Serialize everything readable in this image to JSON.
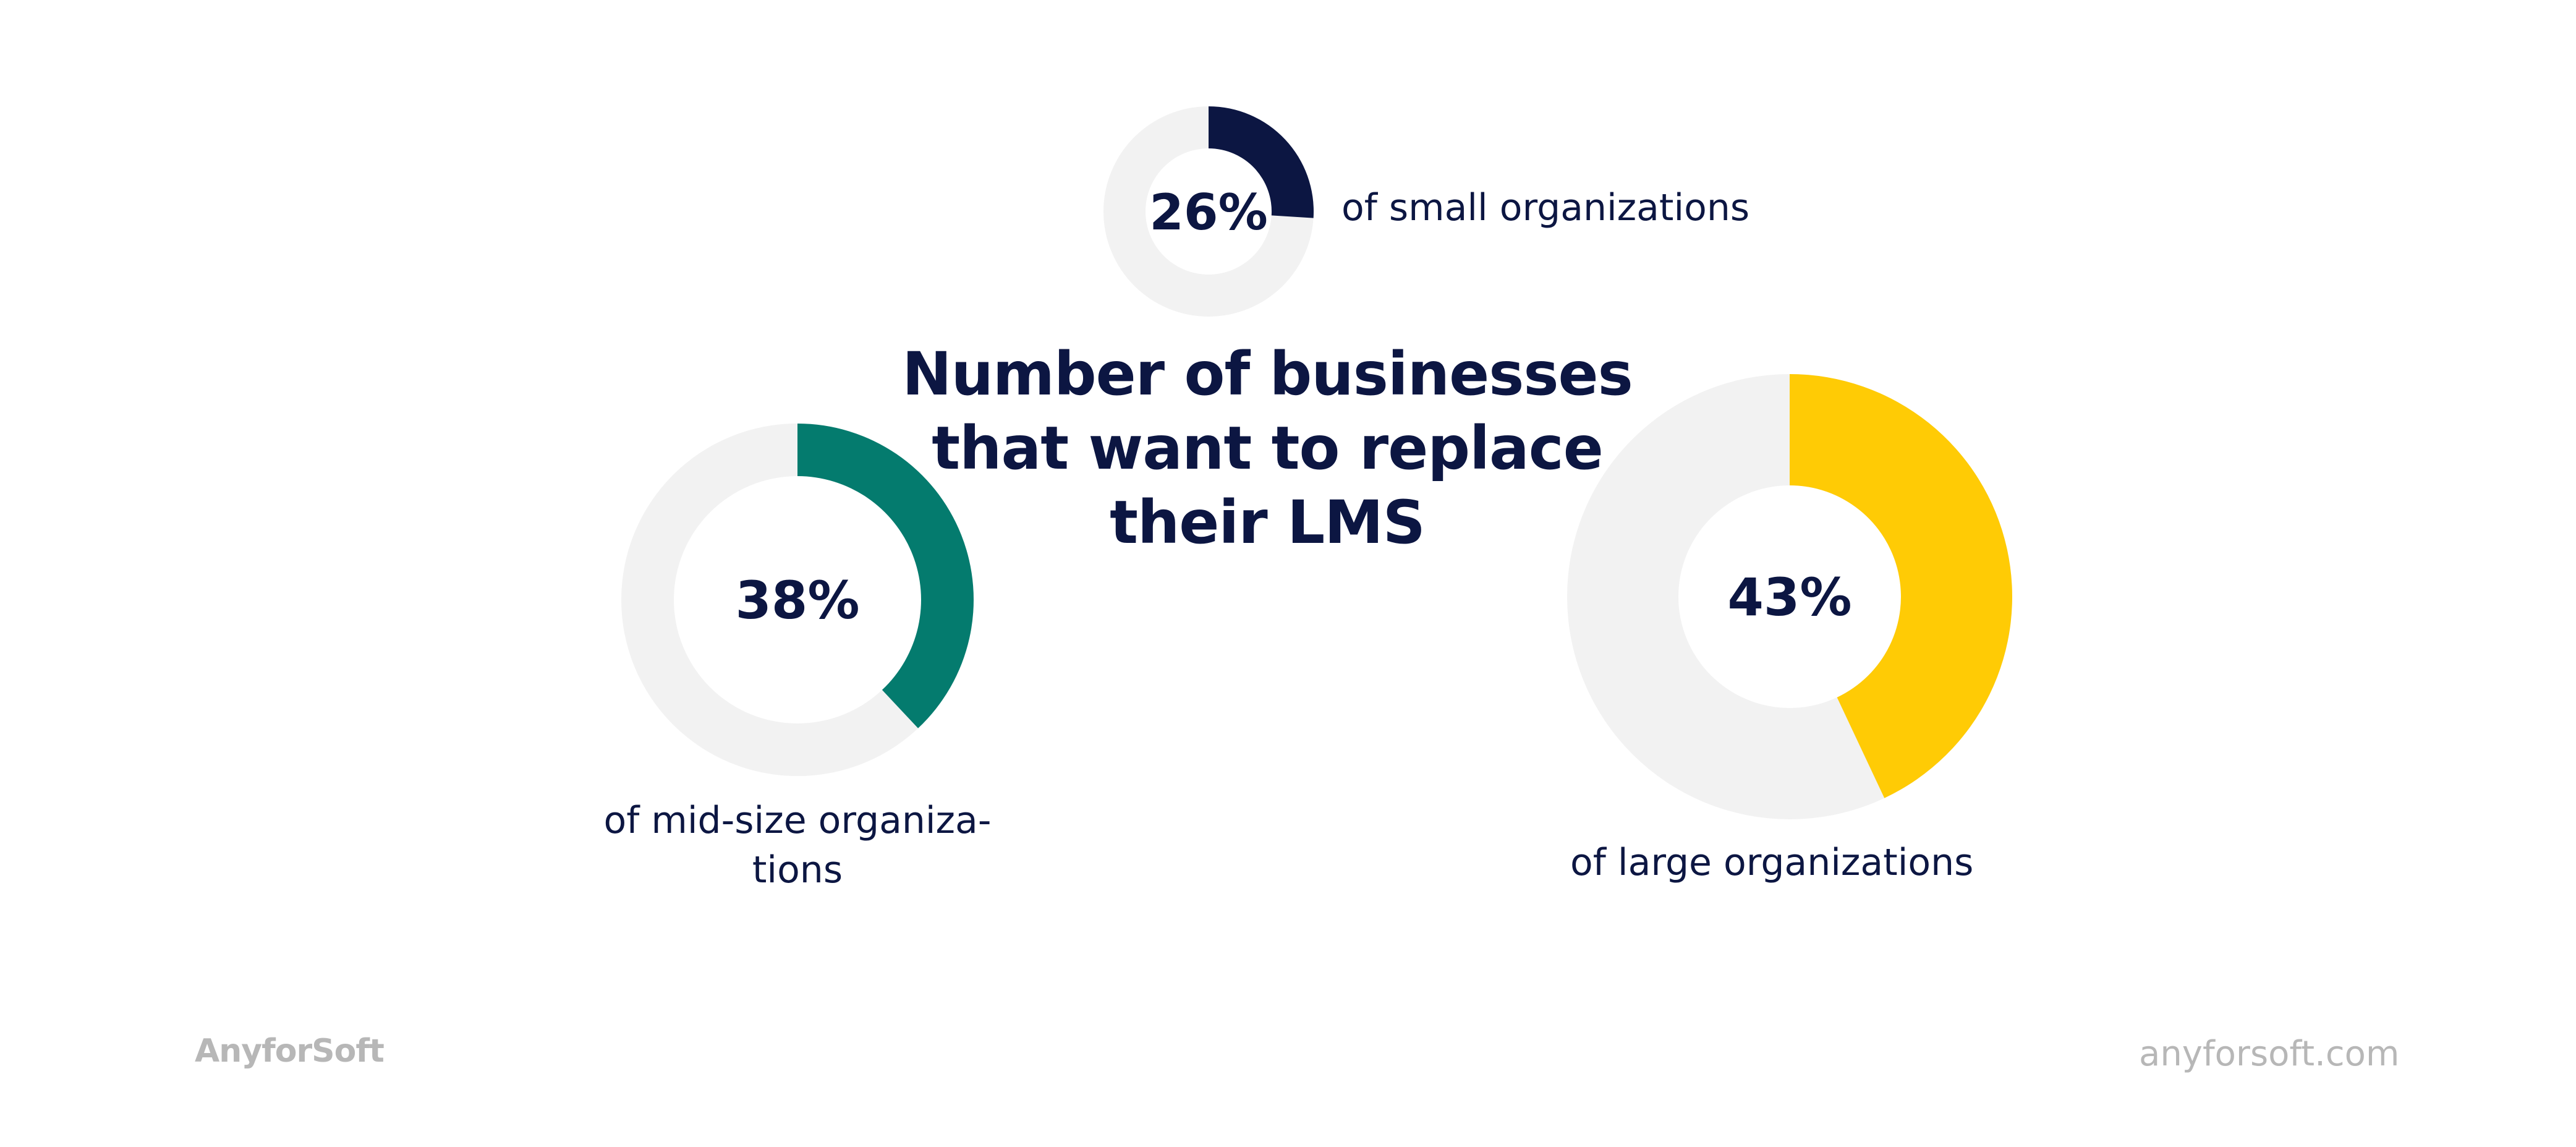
{
  "title_lines": [
    "Number of businesses",
    "that want to replace",
    "their LMS"
  ],
  "chart_data": {
    "type": "pie",
    "title": "Number of businesses that want to replace their LMS",
    "series": [
      {
        "value": 26,
        "value_label": "26%",
        "label_lines": [
          "of small organizations"
        ],
        "color": "#0c1642"
      },
      {
        "value": 38,
        "value_label": "38%",
        "label_lines": [
          "of mid-size organiza-",
          "tions"
        ],
        "color": "#047b6e"
      },
      {
        "value": 43,
        "value_label": "43%",
        "label_lines": [
          "of large organizations"
        ],
        "color": "#ffcb05"
      }
    ],
    "track_color": "#f2f2f2",
    "text_color": "#0c1642"
  },
  "footer": {
    "brand": "AnyforSoft",
    "url": "anyforsoft.com"
  }
}
